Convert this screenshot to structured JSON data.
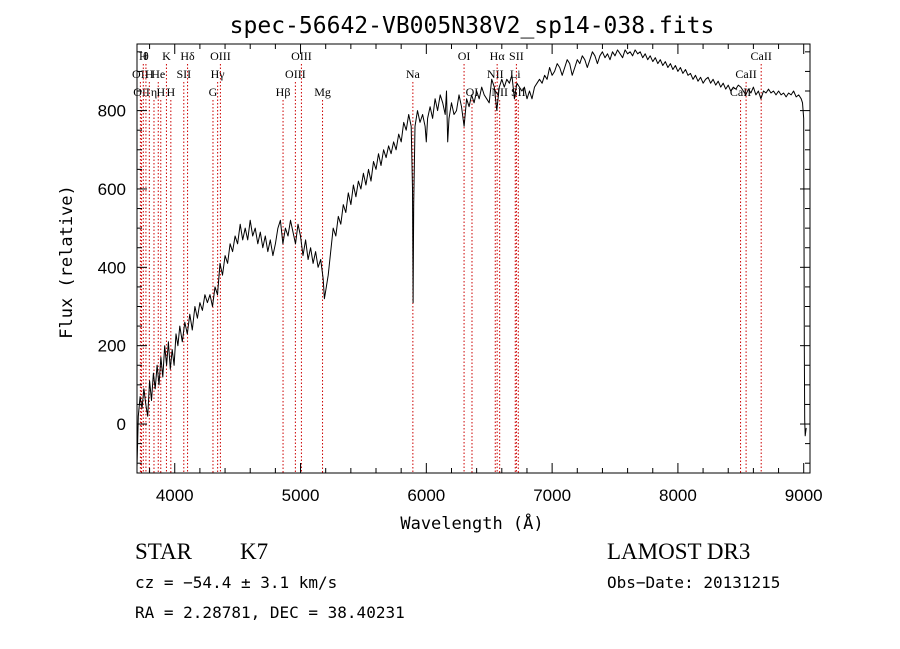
{
  "chart_data": {
    "type": "line",
    "title": "spec-56642-VB005N38V2_sp14-038.fits",
    "xlabel": "Wavelength (Å)",
    "ylabel": "Flux (relative)",
    "xlim": [
      3700,
      9050
    ],
    "ylim": [
      -125,
      970
    ],
    "xticks": [
      4000,
      5000,
      6000,
      7000,
      8000,
      9000
    ],
    "yticks": [
      0,
      200,
      400,
      600,
      800
    ],
    "grid": false,
    "line_color": "#000000",
    "marker_color": "#cc0000",
    "series": [
      {
        "values_xy": [
          [
            3700,
            -110
          ],
          [
            3710,
            20
          ],
          [
            3725,
            70
          ],
          [
            3740,
            40
          ],
          [
            3755,
            90
          ],
          [
            3770,
            50
          ],
          [
            3785,
            20
          ],
          [
            3800,
            110
          ],
          [
            3815,
            60
          ],
          [
            3830,
            130
          ],
          [
            3845,
            90
          ],
          [
            3860,
            150
          ],
          [
            3875,
            100
          ],
          [
            3890,
            170
          ],
          [
            3905,
            120
          ],
          [
            3920,
            200
          ],
          [
            3935,
            150
          ],
          [
            3950,
            210
          ],
          [
            3965,
            140
          ],
          [
            3980,
            190
          ],
          [
            3995,
            150
          ],
          [
            4010,
            230
          ],
          [
            4025,
            200
          ],
          [
            4040,
            250
          ],
          [
            4060,
            210
          ],
          [
            4080,
            260
          ],
          [
            4100,
            230
          ],
          [
            4120,
            280
          ],
          [
            4140,
            240
          ],
          [
            4160,
            300
          ],
          [
            4180,
            270
          ],
          [
            4200,
            310
          ],
          [
            4220,
            290
          ],
          [
            4240,
            330
          ],
          [
            4260,
            310
          ],
          [
            4280,
            330
          ],
          [
            4300,
            300
          ],
          [
            4320,
            350
          ],
          [
            4340,
            330
          ],
          [
            4360,
            410
          ],
          [
            4380,
            380
          ],
          [
            4400,
            430
          ],
          [
            4420,
            410
          ],
          [
            4440,
            460
          ],
          [
            4460,
            440
          ],
          [
            4480,
            480
          ],
          [
            4500,
            460
          ],
          [
            4520,
            510
          ],
          [
            4540,
            470
          ],
          [
            4560,
            500
          ],
          [
            4580,
            470
          ],
          [
            4600,
            520
          ],
          [
            4620,
            480
          ],
          [
            4640,
            500
          ],
          [
            4660,
            460
          ],
          [
            4680,
            490
          ],
          [
            4700,
            450
          ],
          [
            4720,
            480
          ],
          [
            4740,
            440
          ],
          [
            4760,
            470
          ],
          [
            4780,
            430
          ],
          [
            4800,
            460
          ],
          [
            4820,
            500
          ],
          [
            4840,
            520
          ],
          [
            4860,
            460
          ],
          [
            4880,
            500
          ],
          [
            4900,
            480
          ],
          [
            4920,
            520
          ],
          [
            4940,
            490
          ],
          [
            4960,
            460
          ],
          [
            4980,
            510
          ],
          [
            5000,
            480
          ],
          [
            5020,
            430
          ],
          [
            5040,
            470
          ],
          [
            5060,
            420
          ],
          [
            5080,
            450
          ],
          [
            5100,
            410
          ],
          [
            5120,
            440
          ],
          [
            5140,
            400
          ],
          [
            5160,
            420
          ],
          [
            5180,
            370
          ],
          [
            5190,
            320
          ],
          [
            5200,
            340
          ],
          [
            5220,
            380
          ],
          [
            5240,
            440
          ],
          [
            5260,
            500
          ],
          [
            5280,
            480
          ],
          [
            5300,
            530
          ],
          [
            5320,
            510
          ],
          [
            5340,
            560
          ],
          [
            5360,
            540
          ],
          [
            5380,
            590
          ],
          [
            5400,
            560
          ],
          [
            5420,
            610
          ],
          [
            5440,
            580
          ],
          [
            5460,
            620
          ],
          [
            5480,
            600
          ],
          [
            5500,
            640
          ],
          [
            5520,
            610
          ],
          [
            5540,
            650
          ],
          [
            5560,
            620
          ],
          [
            5580,
            670
          ],
          [
            5600,
            650
          ],
          [
            5620,
            690
          ],
          [
            5640,
            660
          ],
          [
            5660,
            700
          ],
          [
            5680,
            680
          ],
          [
            5700,
            710
          ],
          [
            5720,
            690
          ],
          [
            5740,
            720
          ],
          [
            5760,
            700
          ],
          [
            5780,
            740
          ],
          [
            5800,
            720
          ],
          [
            5820,
            770
          ],
          [
            5840,
            750
          ],
          [
            5860,
            790
          ],
          [
            5880,
            760
          ],
          [
            5890,
            600
          ],
          [
            5895,
            310
          ],
          [
            5900,
            560
          ],
          [
            5910,
            760
          ],
          [
            5930,
            800
          ],
          [
            5950,
            770
          ],
          [
            5970,
            790
          ],
          [
            5990,
            760
          ],
          [
            6000,
            720
          ],
          [
            6010,
            780
          ],
          [
            6030,
            810
          ],
          [
            6050,
            780
          ],
          [
            6070,
            830
          ],
          [
            6090,
            800
          ],
          [
            6110,
            840
          ],
          [
            6130,
            820
          ],
          [
            6150,
            790
          ],
          [
            6160,
            850
          ],
          [
            6170,
            720
          ],
          [
            6180,
            780
          ],
          [
            6200,
            820
          ],
          [
            6220,
            790
          ],
          [
            6240,
            800
          ],
          [
            6260,
            840
          ],
          [
            6280,
            810
          ],
          [
            6300,
            760
          ],
          [
            6320,
            830
          ],
          [
            6340,
            810
          ],
          [
            6360,
            840
          ],
          [
            6380,
            820
          ],
          [
            6400,
            850
          ],
          [
            6420,
            830
          ],
          [
            6440,
            860
          ],
          [
            6460,
            840
          ],
          [
            6480,
            830
          ],
          [
            6500,
            820
          ],
          [
            6520,
            880
          ],
          [
            6540,
            860
          ],
          [
            6560,
            800
          ],
          [
            6580,
            860
          ],
          [
            6600,
            880
          ],
          [
            6620,
            860
          ],
          [
            6640,
            880
          ],
          [
            6660,
            870
          ],
          [
            6680,
            890
          ],
          [
            6700,
            830
          ],
          [
            6720,
            870
          ],
          [
            6740,
            860
          ],
          [
            6760,
            850
          ],
          [
            6780,
            860
          ],
          [
            6800,
            830
          ],
          [
            6820,
            850
          ],
          [
            6840,
            830
          ],
          [
            6860,
            860
          ],
          [
            6880,
            870
          ],
          [
            6900,
            880
          ],
          [
            6920,
            870
          ],
          [
            6940,
            890
          ],
          [
            6960,
            880
          ],
          [
            6980,
            910
          ],
          [
            7000,
            890
          ],
          [
            7020,
            900
          ],
          [
            7040,
            920
          ],
          [
            7060,
            910
          ],
          [
            7080,
            890
          ],
          [
            7100,
            910
          ],
          [
            7120,
            930
          ],
          [
            7140,
            920
          ],
          [
            7160,
            890
          ],
          [
            7180,
            910
          ],
          [
            7200,
            930
          ],
          [
            7220,
            920
          ],
          [
            7240,
            940
          ],
          [
            7260,
            930
          ],
          [
            7280,
            910
          ],
          [
            7300,
            930
          ],
          [
            7320,
            950
          ],
          [
            7340,
            940
          ],
          [
            7360,
            920
          ],
          [
            7380,
            940
          ],
          [
            7400,
            950
          ],
          [
            7420,
            935
          ],
          [
            7440,
            945
          ],
          [
            7460,
            930
          ],
          [
            7480,
            950
          ],
          [
            7500,
            940
          ],
          [
            7520,
            955
          ],
          [
            7540,
            945
          ],
          [
            7560,
            935
          ],
          [
            7580,
            955
          ],
          [
            7600,
            945
          ],
          [
            7620,
            950
          ],
          [
            7640,
            940
          ],
          [
            7660,
            955
          ],
          [
            7680,
            945
          ],
          [
            7700,
            950
          ],
          [
            7720,
            935
          ],
          [
            7740,
            945
          ],
          [
            7760,
            930
          ],
          [
            7780,
            940
          ],
          [
            7800,
            925
          ],
          [
            7820,
            935
          ],
          [
            7840,
            920
          ],
          [
            7860,
            930
          ],
          [
            7880,
            915
          ],
          [
            7900,
            925
          ],
          [
            7920,
            910
          ],
          [
            7940,
            920
          ],
          [
            7960,
            905
          ],
          [
            7980,
            915
          ],
          [
            8000,
            900
          ],
          [
            8020,
            910
          ],
          [
            8040,
            895
          ],
          [
            8060,
            905
          ],
          [
            8080,
            890
          ],
          [
            8100,
            895
          ],
          [
            8120,
            880
          ],
          [
            8140,
            890
          ],
          [
            8160,
            875
          ],
          [
            8180,
            885
          ],
          [
            8200,
            870
          ],
          [
            8220,
            880
          ],
          [
            8240,
            885
          ],
          [
            8260,
            870
          ],
          [
            8280,
            880
          ],
          [
            8300,
            865
          ],
          [
            8320,
            875
          ],
          [
            8340,
            860
          ],
          [
            8360,
            870
          ],
          [
            8380,
            855
          ],
          [
            8400,
            865
          ],
          [
            8420,
            850
          ],
          [
            8440,
            860
          ],
          [
            8460,
            855
          ],
          [
            8480,
            865
          ],
          [
            8500,
            860
          ],
          [
            8520,
            850
          ],
          [
            8540,
            840
          ],
          [
            8560,
            855
          ],
          [
            8580,
            845
          ],
          [
            8600,
            860
          ],
          [
            8620,
            840
          ],
          [
            8640,
            850
          ],
          [
            8660,
            830
          ],
          [
            8680,
            850
          ],
          [
            8700,
            845
          ],
          [
            8720,
            855
          ],
          [
            8740,
            845
          ],
          [
            8760,
            850
          ],
          [
            8780,
            840
          ],
          [
            8800,
            850
          ],
          [
            8820,
            840
          ],
          [
            8840,
            845
          ],
          [
            8860,
            835
          ],
          [
            8880,
            845
          ],
          [
            8900,
            840
          ],
          [
            8920,
            850
          ],
          [
            8940,
            835
          ],
          [
            8960,
            840
          ],
          [
            8980,
            830
          ],
          [
            8990,
            820
          ],
          [
            9000,
            780
          ],
          [
            9005,
            200
          ],
          [
            9008,
            10
          ],
          [
            9012,
            -30
          ],
          [
            9020,
            -10
          ]
        ]
      }
    ],
    "markers": [
      {
        "wl": 3727,
        "lab": "OII",
        "row": 2
      },
      {
        "wl": 3736,
        "lab": "OII",
        "row": 3
      },
      {
        "wl": 3750,
        "lab": "H",
        "row": 1
      },
      {
        "wl": 3771,
        "lab": "θ",
        "row": 1
      },
      {
        "wl": 3798,
        "lab": "H",
        "row": 2
      },
      {
        "wl": 3835,
        "lab": "η",
        "row": 3
      },
      {
        "wl": 3869,
        "lab": "He",
        "row": 2
      },
      {
        "wl": 3889,
        "lab": "H",
        "row": 3
      },
      {
        "wl": 3934,
        "lab": "K",
        "row": 1
      },
      {
        "wl": 3969,
        "lab": "H",
        "row": 3
      },
      {
        "wl": 4072,
        "lab": "SII",
        "row": 2
      },
      {
        "wl": 4102,
        "lab": "Hδ",
        "row": 1
      },
      {
        "wl": 4304,
        "lab": "G",
        "row": 3
      },
      {
        "wl": 4341,
        "lab": "Hγ",
        "row": 2
      },
      {
        "wl": 4363,
        "lab": "OIII",
        "row": 1
      },
      {
        "wl": 4861,
        "lab": "Hβ",
        "row": 3
      },
      {
        "wl": 4959,
        "lab": "OIII",
        "row": 2
      },
      {
        "wl": 5007,
        "lab": "OIII",
        "row": 1
      },
      {
        "wl": 5175,
        "lab": "Mg",
        "row": 3
      },
      {
        "wl": 5893,
        "lab": "Na",
        "row": 2
      },
      {
        "wl": 6300,
        "lab": "OI",
        "row": 1
      },
      {
        "wl": 6363,
        "lab": "OI",
        "row": 3
      },
      {
        "wl": 6548,
        "lab": "NII",
        "row": 2
      },
      {
        "wl": 6563,
        "lab": "Hα",
        "row": 1
      },
      {
        "wl": 6583,
        "lab": "NII",
        "row": 3
      },
      {
        "wl": 6707,
        "lab": "Li",
        "row": 2
      },
      {
        "wl": 6716,
        "lab": "SII",
        "row": 1
      },
      {
        "wl": 6731,
        "lab": "SII",
        "row": 3
      },
      {
        "wl": 8498,
        "lab": "CaII",
        "row": 3
      },
      {
        "wl": 8542,
        "lab": "CaII",
        "row": 2
      },
      {
        "wl": 8662,
        "lab": "CaII",
        "row": 1
      }
    ]
  },
  "footer": {
    "class_label": "STAR",
    "subclass": "K7",
    "survey": "LAMOST DR3",
    "redshift_line": "cz = −54.4 ± 3.1 km/s",
    "obs_date_line": "Obs−Date: 20131215",
    "coords_line": "RA =   2.28781, DEC =  38.40231"
  }
}
